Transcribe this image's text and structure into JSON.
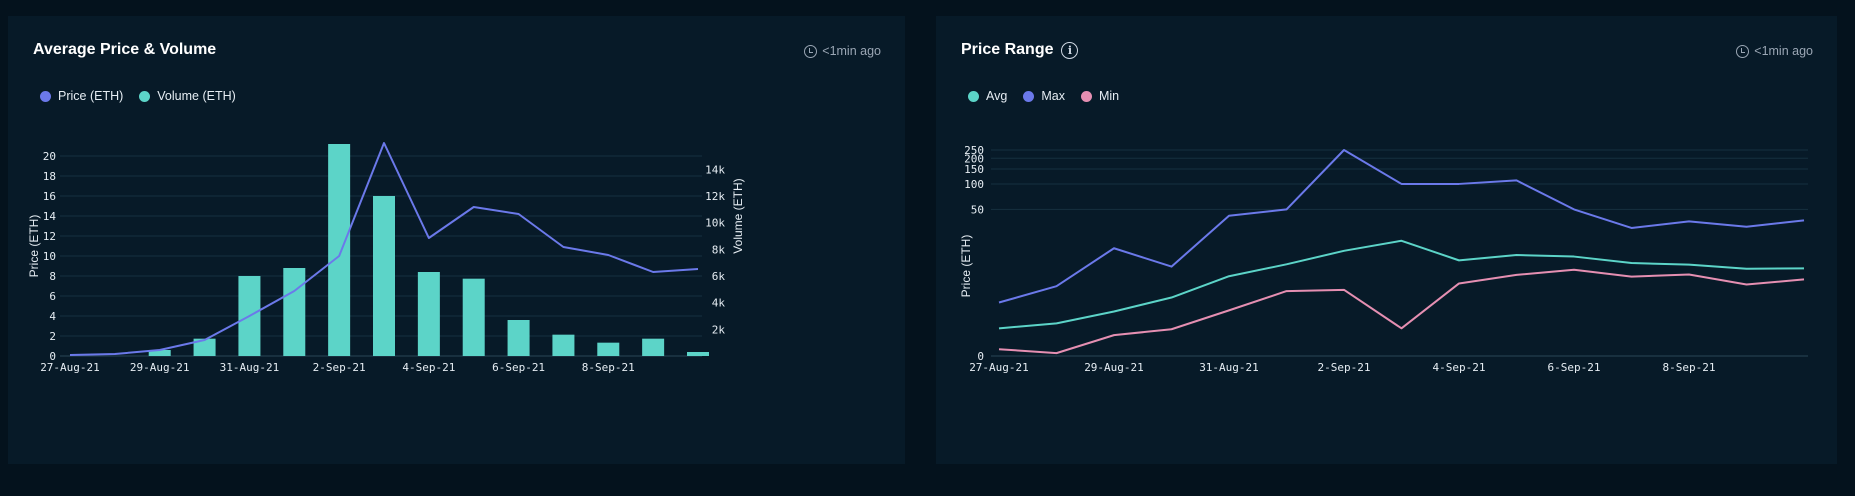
{
  "colors": {
    "price": "#6b79ea",
    "volume": "#5cd4c8",
    "avg": "#5cd4c8",
    "max": "#6b79ea",
    "min": "#e58fb2",
    "grid": "#16303f"
  },
  "left": {
    "title": "Average Price & Volume",
    "updated": "<1min ago",
    "legend": [
      {
        "label": "Price (ETH)",
        "color": "#6b79ea"
      },
      {
        "label": "Volume (ETH)",
        "color": "#5cd4c8"
      }
    ]
  },
  "right": {
    "title": "Price Range",
    "updated": "<1min ago",
    "legend": [
      {
        "label": "Avg",
        "color": "#5cd4c8"
      },
      {
        "label": "Max",
        "color": "#6b79ea"
      },
      {
        "label": "Min",
        "color": "#e58fb2"
      }
    ]
  },
  "chart_data": [
    {
      "type": "bar+line",
      "title": "Average Price & Volume",
      "categories": [
        "27-Aug-21",
        "28-Aug-21",
        "29-Aug-21",
        "30-Aug-21",
        "31-Aug-21",
        "1-Sep-21",
        "2-Sep-21",
        "3-Sep-21",
        "4-Sep-21",
        "5-Sep-21",
        "6-Sep-21",
        "7-Sep-21",
        "8-Sep-21",
        "9-Sep-21",
        "10-Sep-21"
      ],
      "xtick_labels": [
        "27-Aug-21",
        "29-Aug-21",
        "31-Aug-21",
        "2-Sep-21",
        "4-Sep-21",
        "6-Sep-21",
        "8-Sep-21"
      ],
      "xtick_indices": [
        0,
        2,
        4,
        6,
        8,
        10,
        12
      ],
      "series": [
        {
          "name": "Price (ETH)",
          "axis": "left",
          "kind": "line",
          "color": "#6b79ea",
          "values": [
            0.1,
            0.2,
            0.6,
            1.6,
            4.0,
            6.5,
            10.0,
            21.3,
            11.8,
            14.9,
            14.2,
            10.9,
            10.1,
            8.4,
            8.7
          ]
        },
        {
          "name": "Volume (ETH)",
          "axis": "right",
          "kind": "bar",
          "color": "#5cd4c8",
          "values": [
            null,
            null,
            450,
            1300,
            6000,
            6600,
            15900,
            12000,
            6300,
            5800,
            2700,
            1600,
            1000,
            1300,
            300
          ]
        }
      ],
      "ylabel": "Price (ETH)",
      "ylabel_right": "Volume (ETH)",
      "ylim": [
        0,
        22
      ],
      "yticks": [
        0,
        2,
        4,
        6,
        8,
        10,
        12,
        14,
        16,
        18,
        20
      ],
      "ylim_right": [
        0,
        16500
      ],
      "yticks_right": [
        2000,
        4000,
        6000,
        8000,
        10000,
        12000,
        14000
      ],
      "yticks_right_labels": [
        "2k",
        "4k",
        "6k",
        "8k",
        "10k",
        "12k",
        "14k"
      ]
    },
    {
      "type": "line",
      "title": "Price Range",
      "categories": [
        "27-Aug-21",
        "28-Aug-21",
        "29-Aug-21",
        "30-Aug-21",
        "31-Aug-21",
        "1-Sep-21",
        "2-Sep-21",
        "3-Sep-21",
        "4-Sep-21",
        "5-Sep-21",
        "6-Sep-21",
        "7-Sep-21",
        "8-Sep-21",
        "9-Sep-21",
        "10-Sep-21"
      ],
      "xtick_labels": [
        "27-Aug-21",
        "29-Aug-21",
        "31-Aug-21",
        "2-Sep-21",
        "4-Sep-21",
        "6-Sep-21",
        "8-Sep-21"
      ],
      "xtick_indices": [
        0,
        2,
        4,
        6,
        8,
        10,
        12
      ],
      "scale": "symlog",
      "series": [
        {
          "name": "Max",
          "color": "#6b79ea",
          "values": [
            3.2,
            5.5,
            17,
            10,
            42,
            50,
            250,
            100,
            100,
            110,
            50,
            30,
            36,
            31,
            37
          ]
        },
        {
          "name": "Avg",
          "color": "#5cd4c8",
          "values": [
            1.1,
            1.4,
            2.3,
            3.8,
            7.5,
            10.7,
            15.8,
            21,
            12,
            14,
            13.4,
            11.1,
            10.6,
            9.4,
            9.5
          ]
        },
        {
          "name": "Min",
          "color": "#e58fb2",
          "values": [
            0.2,
            0.08,
            0.75,
            1.05,
            2.4,
            4.7,
            4.9,
            1.1,
            6,
            7.8,
            9.1,
            7.4,
            7.9,
            5.8,
            6.8
          ]
        }
      ],
      "ylabel": "Price (ETH)",
      "yticks": [
        0,
        50,
        100,
        150,
        200,
        250
      ]
    }
  ]
}
